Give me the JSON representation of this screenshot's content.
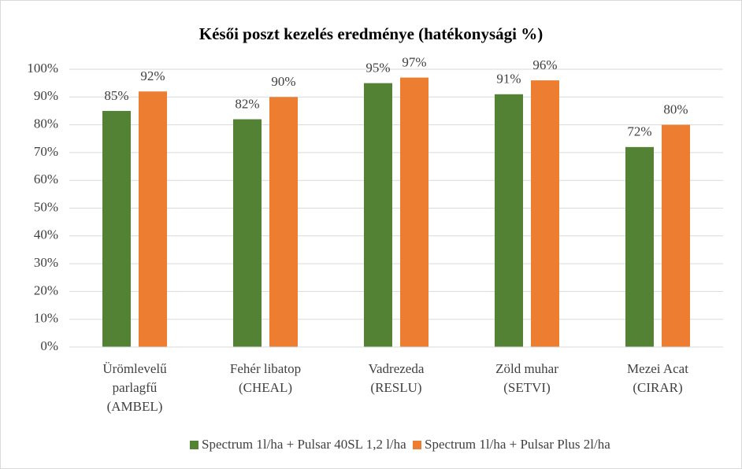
{
  "chart_data": {
    "type": "bar",
    "title": "Késői poszt kezelés eredménye (hatékonysági %)",
    "categories": [
      [
        "Ürömlevelű",
        "parlagfű",
        "(AMBEL)"
      ],
      [
        "Fehér libatop",
        "(CHEAL)"
      ],
      [
        "Vadrezeda",
        "(RESLU)"
      ],
      [
        "Zöld muhar",
        "(SETVI)"
      ],
      [
        "Mezei Acat",
        "(CIRAR)"
      ]
    ],
    "series": [
      {
        "name": "Spectrum 1l/ha + Pulsar 40SL 1,2 l/ha",
        "color": "#548235",
        "values": [
          85,
          82,
          95,
          91,
          72
        ],
        "value_labels": [
          "85%",
          "82%",
          "95%",
          "91%",
          "72%"
        ]
      },
      {
        "name": "Spectrum 1l/ha + Pulsar Plus 2l/ha",
        "color": "#ed7d31",
        "values": [
          92,
          90,
          97,
          96,
          80
        ],
        "value_labels": [
          "92%",
          "90%",
          "97%",
          "96%",
          "80%"
        ]
      }
    ],
    "ylim": [
      0,
      100
    ],
    "yticks": [
      {
        "value": 0,
        "label": "0%"
      },
      {
        "value": 10,
        "label": "10%"
      },
      {
        "value": 20,
        "label": "20%"
      },
      {
        "value": 30,
        "label": "30%"
      },
      {
        "value": 40,
        "label": "40%"
      },
      {
        "value": 50,
        "label": "50%"
      },
      {
        "value": 60,
        "label": "60%"
      },
      {
        "value": 70,
        "label": "70%"
      },
      {
        "value": 80,
        "label": "80%"
      },
      {
        "value": 90,
        "label": "90%"
      },
      {
        "value": 100,
        "label": "100%"
      }
    ],
    "grid": true,
    "legend": "bottom"
  }
}
